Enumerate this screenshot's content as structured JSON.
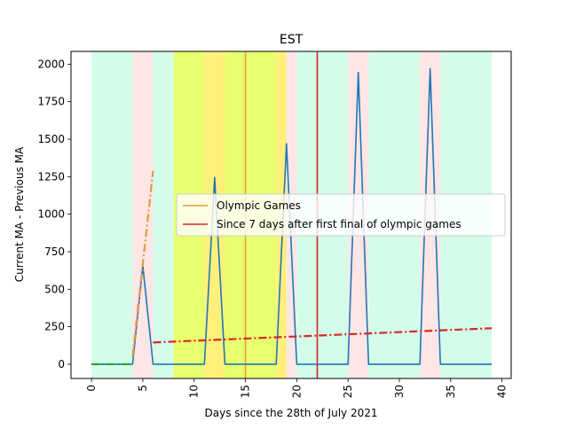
{
  "chart_data": {
    "type": "line",
    "title": "EST",
    "xlabel": "Days since the 28th of July 2021",
    "ylabel": "Current MA - Previous MA",
    "xlim": [
      -2,
      40.9
    ],
    "ylim": [
      -95,
      2085
    ],
    "xticks": [
      0,
      5,
      10,
      15,
      20,
      25,
      30,
      35,
      40
    ],
    "yticks": [
      0,
      250,
      500,
      750,
      1000,
      1250,
      1500,
      1750,
      2000
    ],
    "tick_label_rotation_x": 90,
    "grid": false,
    "legend": {
      "placement": "center-right",
      "entries": [
        {
          "label": "Olympic Games",
          "color": "#e69a3c"
        },
        {
          "label": "Since 7 days after first final of olympic games",
          "color": "#d62728"
        }
      ]
    },
    "background_bands": [
      {
        "x0": 0,
        "x1": 4,
        "color": "#d3fde9"
      },
      {
        "x0": 4,
        "x1": 6,
        "color": "#ffe6e6"
      },
      {
        "x0": 6,
        "x1": 8,
        "color": "#d3fde9"
      },
      {
        "x0": 8,
        "x1": 11,
        "color": "#e8ff6e"
      },
      {
        "x0": 11,
        "x1": 13,
        "color": "#fff07a"
      },
      {
        "x0": 13,
        "x1": 18,
        "color": "#e8ff6e"
      },
      {
        "x0": 18,
        "x1": 19,
        "color": "#fff07a"
      },
      {
        "x0": 19,
        "x1": 20,
        "color": "#ffe6e6"
      },
      {
        "x0": 20,
        "x1": 25,
        "color": "#d3fde9"
      },
      {
        "x0": 25,
        "x1": 27,
        "color": "#ffe6e6"
      },
      {
        "x0": 27,
        "x1": 32,
        "color": "#d3fde9"
      },
      {
        "x0": 32,
        "x1": 34,
        "color": "#ffe6e6"
      },
      {
        "x0": 34,
        "x1": 39,
        "color": "#d3fde9"
      }
    ],
    "vertical_lines": [
      {
        "x": 15,
        "color": "#e69a3c"
      },
      {
        "x": 22,
        "color": "#d62728"
      }
    ],
    "series": [
      {
        "color": "#1f77b4",
        "style": "solid",
        "x": [
          0,
          1,
          2,
          3,
          4,
          5,
          6,
          7,
          8,
          9,
          10,
          11,
          12,
          13,
          14,
          15,
          16,
          17,
          18,
          19,
          20,
          21,
          22,
          23,
          24,
          25,
          26,
          27,
          28,
          29,
          30,
          31,
          32,
          33,
          34,
          35,
          36,
          37,
          38,
          39
        ],
        "y": [
          0,
          0,
          0,
          0,
          0,
          655,
          0,
          0,
          0,
          0,
          0,
          0,
          1245,
          0,
          0,
          0,
          0,
          0,
          0,
          1470,
          0,
          0,
          0,
          0,
          0,
          0,
          1945,
          0,
          0,
          0,
          0,
          0,
          0,
          1970,
          0,
          0,
          0,
          0,
          0,
          0
        ]
      },
      {
        "color": "#2ca02c",
        "style": "dashdot",
        "x": [
          0,
          4
        ],
        "y": [
          0,
          0
        ]
      },
      {
        "color": "#e69a3c",
        "style": "dashdot",
        "x": [
          4,
          6
        ],
        "y": [
          50,
          1290
        ]
      },
      {
        "color": "#d62728",
        "style": "dashdot",
        "x": [
          6,
          39
        ],
        "y": [
          145,
          240
        ]
      }
    ]
  }
}
